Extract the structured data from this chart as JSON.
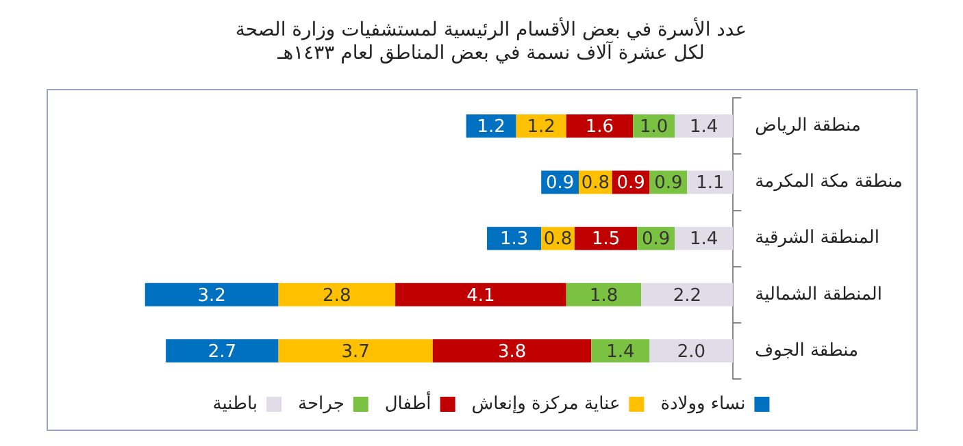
{
  "chart_data": {
    "type": "bar",
    "orientation": "horizontal",
    "stacked": true,
    "title": "عدد الأسرة في بعض الأقسام الرئيسية لمستشفيات وزارة الصحة\nلكل عشرة آلاف نسمة في بعض المناطق لعام ١٤٣٣هـ",
    "categories": [
      "منطقة الرياض",
      "منطقة مكة المكرمة",
      "المنطقة الشرقية",
      "المنطقة الشمالية",
      "منطقة الجوف"
    ],
    "series": [
      {
        "name": "باطنية",
        "color": "#e0dde8",
        "values": [
          1.4,
          1.1,
          1.4,
          2.2,
          2.0
        ],
        "value_labels": [
          "1.4",
          "1.1",
          "1.4",
          "2.2",
          "2.0"
        ]
      },
      {
        "name": "جراحة",
        "color": "#7cc242",
        "values": [
          1.0,
          0.9,
          0.9,
          1.8,
          1.4
        ],
        "value_labels": [
          "1.0",
          "0.9",
          "0.9",
          "1.8",
          "1.4"
        ]
      },
      {
        "name": "أطفال",
        "color": "#c00000",
        "values": [
          1.6,
          0.9,
          1.5,
          4.1,
          3.8
        ],
        "value_labels": [
          "1.6",
          "0.9",
          "1.5",
          "4.1",
          "3.8"
        ]
      },
      {
        "name": "عناية مركزة وإنعاش",
        "color": "#ffc000",
        "values": [
          1.2,
          0.8,
          0.8,
          2.8,
          3.7
        ],
        "value_labels": [
          "1.2",
          "0.8",
          "0.8",
          "2.8",
          "3.7"
        ]
      },
      {
        "name": "نساء وولادة",
        "color": "#0070c0",
        "values": [
          1.2,
          0.9,
          1.3,
          3.2,
          2.7
        ],
        "value_labels": [
          "1.2",
          "0.9",
          "1.3",
          "3.2",
          "2.7"
        ]
      }
    ],
    "legend": "bottom",
    "grid": false,
    "tick_labels": "y"
  }
}
